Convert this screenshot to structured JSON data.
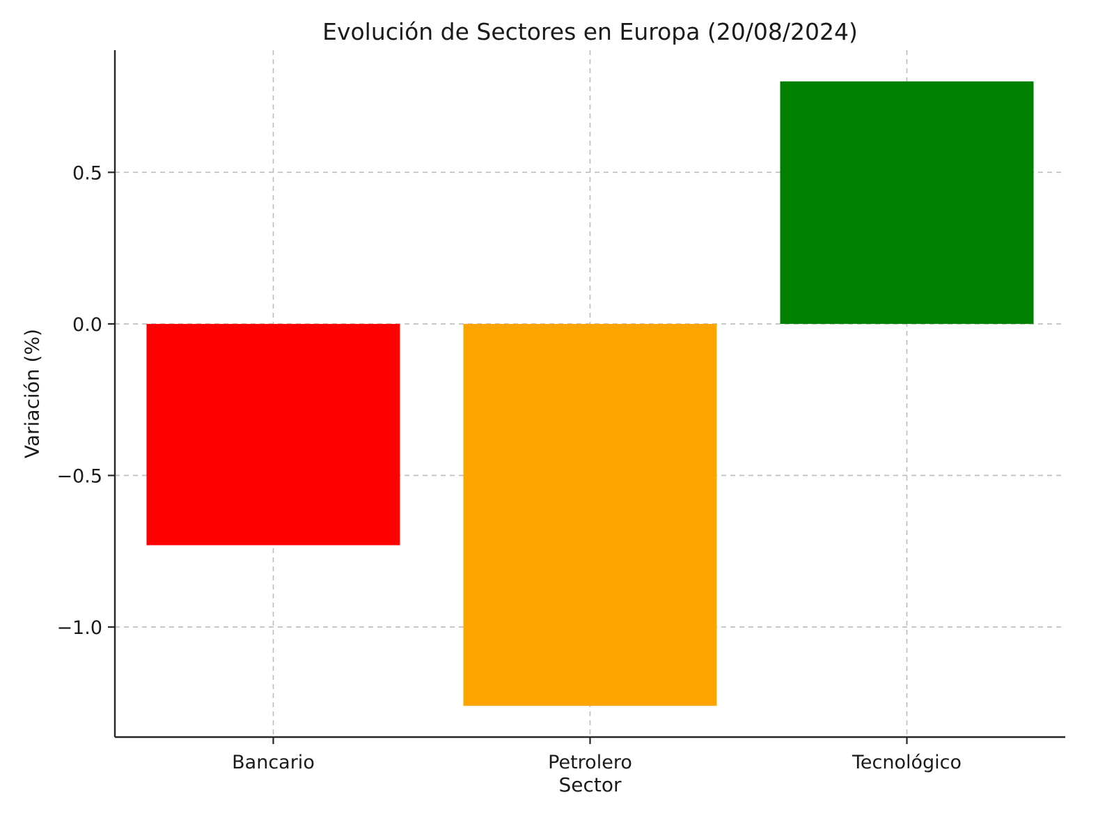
{
  "chart_data": {
    "type": "bar",
    "title": "Evolución de Sectores en Europa (20/08/2024)",
    "xlabel": "Sector",
    "ylabel": "Variación (%)",
    "categories": [
      "Bancario",
      "Petrolero",
      "Tecnológico"
    ],
    "values": [
      -0.73,
      -1.26,
      0.8
    ],
    "bar_colors": [
      "#ff0000",
      "#ffa500",
      "#008000"
    ],
    "ylim": [
      -1.363,
      0.903
    ],
    "yticks": [
      0.5,
      0.0,
      -0.5,
      -1.0
    ],
    "ytick_labels": [
      "0.5",
      "0.0",
      "−0.5",
      "−1.0"
    ],
    "grid": true,
    "legend": "none",
    "bar_width_frac": 0.8
  }
}
